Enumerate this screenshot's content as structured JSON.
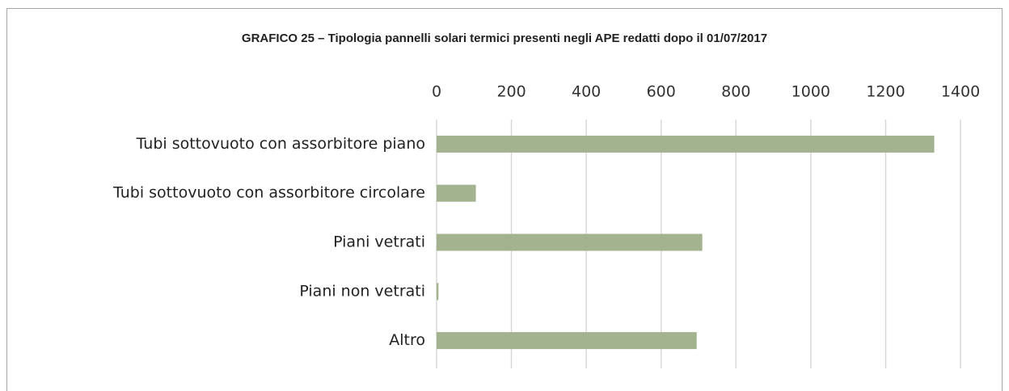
{
  "chart_data": {
    "type": "bar",
    "orientation": "horizontal",
    "title": "GRAFICO 25 – Tipologia pannelli solari termici presenti negli APE redatti dopo il 01/07/2017",
    "categories": [
      "Tubi sottovuoto con assorbitore piano",
      "Tubi sottovuoto con assorbitore circolare",
      "Piani vetrati",
      "Piani non vetrati",
      "Altro"
    ],
    "values": [
      1330,
      105,
      710,
      5,
      695
    ],
    "color": "#a3b38f",
    "xlim": [
      0,
      1400
    ],
    "xticks": [
      0,
      200,
      400,
      600,
      800,
      1000,
      1200,
      1400
    ],
    "grid": true
  }
}
